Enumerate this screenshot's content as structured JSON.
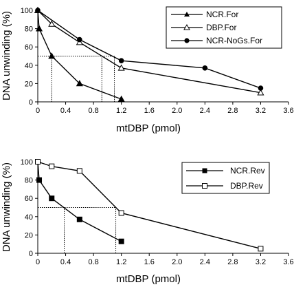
{
  "chart_data": [
    {
      "type": "line",
      "xlabel": "mtDBP (pmol)",
      "ylabel": "DNA unwinding (%)",
      "xlim": [
        0,
        3.6
      ],
      "ylim": [
        0,
        100
      ],
      "xticks": [
        "0",
        "0.4",
        "0.8",
        "1.2",
        "1.6",
        "2.0",
        "2.4",
        "2.8",
        "3.2",
        "3.6"
      ],
      "yticks": [
        "0",
        "20",
        "40",
        "60",
        "80",
        "100"
      ],
      "legend_position": "top-right",
      "series": [
        {
          "name": "NCR.For",
          "marker": "filled-triangle",
          "x": [
            0,
            0.02,
            0.2,
            0.6,
            1.2
          ],
          "y": [
            100,
            80,
            50,
            20,
            3
          ]
        },
        {
          "name": "DBP.For",
          "marker": "open-triangle",
          "x": [
            0,
            0.2,
            0.6,
            1.2,
            3.2
          ],
          "y": [
            100,
            85,
            65,
            37,
            10
          ]
        },
        {
          "name": "NCR-NoGs.For",
          "marker": "filled-circle",
          "x": [
            0,
            0.6,
            1.2,
            2.4,
            3.2
          ],
          "y": [
            100,
            68,
            45,
            37,
            15
          ]
        }
      ],
      "reference_lines": [
        {
          "y": 50,
          "x_from": 0,
          "x_to": 1.1
        },
        {
          "x": 0.2,
          "y_from": 0,
          "y_to": 50
        },
        {
          "x": 0.92,
          "y_from": 0,
          "y_to": 50
        },
        {
          "x": 1.1,
          "y_from": 0,
          "y_to": 50
        }
      ]
    },
    {
      "type": "line",
      "xlabel": "mtDBP (pmol)",
      "ylabel": "DNA unwinding (%)",
      "xlim": [
        0,
        3.6
      ],
      "ylim": [
        0,
        100
      ],
      "xticks": [
        "0",
        "0.4",
        "0.8",
        "1.2",
        "1.6",
        "2.0",
        "2.4",
        "2.8",
        "3.2",
        "3.6"
      ],
      "yticks": [
        "0",
        "20",
        "40",
        "60",
        "80",
        "100"
      ],
      "legend_position": "top-right",
      "series": [
        {
          "name": "NCR.Rev",
          "marker": "filled-square",
          "x": [
            0,
            0.02,
            0.2,
            0.6,
            1.2
          ],
          "y": [
            100,
            80,
            60,
            37,
            13
          ]
        },
        {
          "name": "DBP.Rev",
          "marker": "open-square",
          "x": [
            0,
            0.2,
            0.6,
            1.2,
            3.2
          ],
          "y": [
            100,
            95,
            90,
            44,
            5
          ]
        }
      ],
      "reference_lines": [
        {
          "y": 50,
          "x_from": 0,
          "x_to": 1.12
        },
        {
          "x": 0.38,
          "y_from": 0,
          "y_to": 50
        },
        {
          "x": 1.12,
          "y_from": 0,
          "y_to": 50
        }
      ]
    }
  ]
}
